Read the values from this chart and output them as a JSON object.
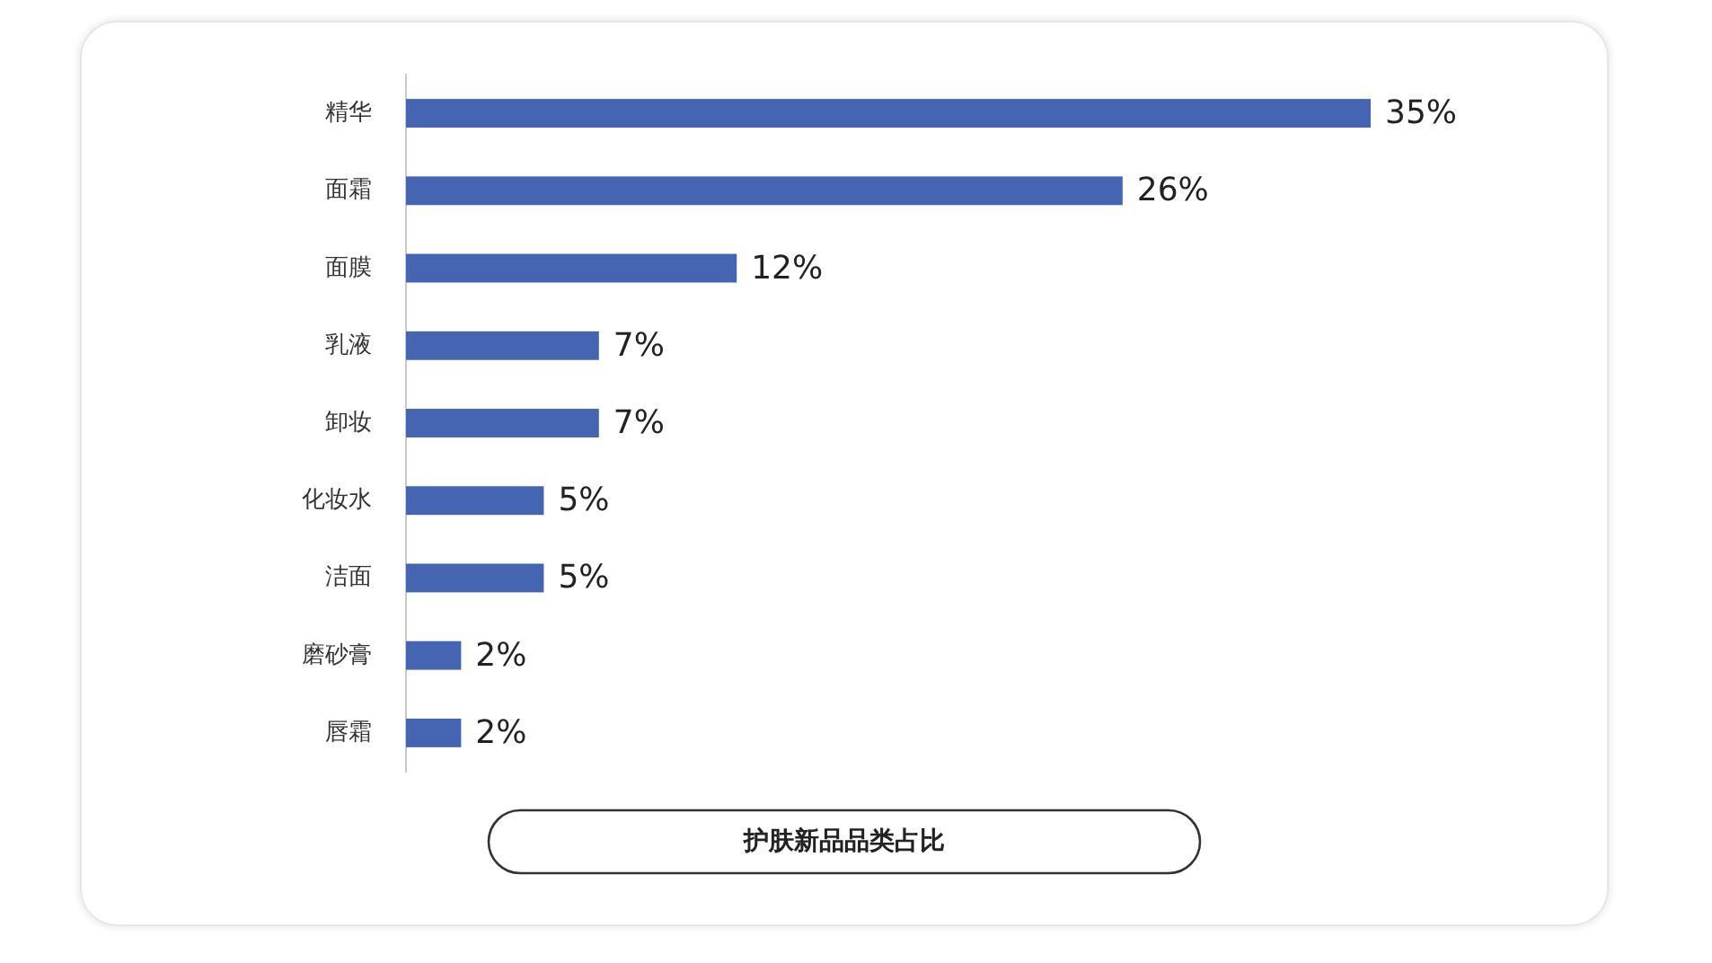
{
  "chart_data": {
    "type": "bar",
    "orientation": "horizontal",
    "title": "护肤新品品类占比",
    "categories": [
      "精华",
      "面霜",
      "面膜",
      "乳液",
      "卸妆",
      "化妆水",
      "洁面",
      "磨砂膏",
      "唇霜"
    ],
    "values": [
      35,
      26,
      12,
      7,
      7,
      5,
      5,
      2,
      2
    ],
    "value_labels": [
      "35%",
      "26%",
      "12%",
      "7%",
      "7%",
      "5%",
      "5%",
      "2%",
      "2%"
    ],
    "color": "#4565b3"
  }
}
